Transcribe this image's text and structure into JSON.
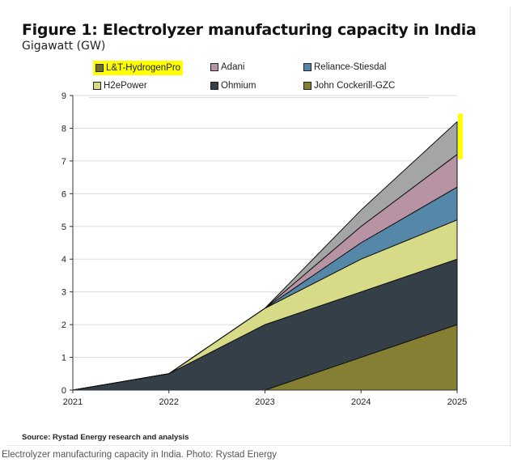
{
  "chart_data": {
    "type": "area",
    "stacked": true,
    "title": "Figure 1: Electrolyzer manufacturing capacity in India",
    "subtitle": "Gigawatt (GW)",
    "xlabel": "",
    "ylabel": "Gigawatt (GW)",
    "x": [
      "2021",
      "2022",
      "2023",
      "2024",
      "2025"
    ],
    "ylim": [
      0,
      9
    ],
    "yticks": [
      "0",
      "1",
      "2",
      "3",
      "4",
      "5",
      "6",
      "7",
      "8",
      "9"
    ],
    "grid": true,
    "legend_position": "top",
    "series": [
      {
        "name": "John Cockerill-GZC",
        "color": "#857f34",
        "values": [
          0,
          0,
          0,
          1,
          2
        ]
      },
      {
        "name": "Ohmium",
        "color": "#343f48",
        "values": [
          0,
          0.5,
          2,
          2,
          2
        ]
      },
      {
        "name": "H2ePower",
        "color": "#d7db87",
        "values": [
          0,
          0,
          0.5,
          1,
          1.2
        ]
      },
      {
        "name": "Reliance-Stiesdal",
        "color": "#5588a8",
        "values": [
          0,
          0,
          0,
          0.5,
          1
        ]
      },
      {
        "name": "Adani",
        "color": "#b793a4",
        "values": [
          0,
          0,
          0,
          0.5,
          1
        ]
      },
      {
        "name": "L&T-HydrogenPro",
        "color": "#a3a6a4",
        "values": [
          0,
          0,
          0,
          0.5,
          1
        ]
      }
    ],
    "legend_order": [
      "L&T-HydrogenPro",
      "Adani",
      "Reliance-Stiesdal",
      "H2ePower",
      "Ohmium",
      "John Cockerill-GZC"
    ],
    "highlight_color": "#ffff00"
  },
  "source": "Source: Rystad Energy research and analysis",
  "caption": "Electrolyzer manufacturing capacity in India. Photo: Rystad Energy"
}
